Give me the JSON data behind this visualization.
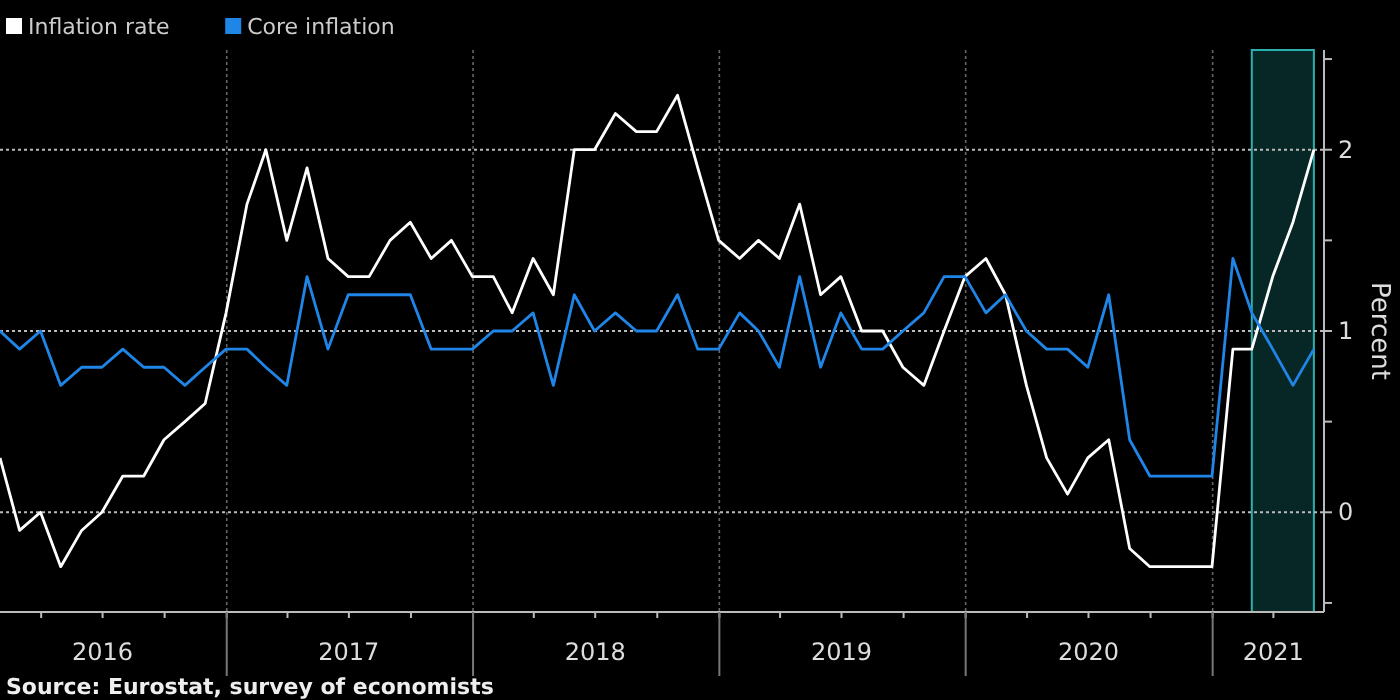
{
  "chart_data": {
    "type": "line",
    "ylabel": "Percent",
    "annotations": [
      "Source: Eurostat, survey of economists"
    ],
    "x": [
      "2016-01-31",
      "2016-02-29",
      "2016-03-31",
      "2016-04-30",
      "2016-05-31",
      "2016-06-30",
      "2016-07-31",
      "2016-08-31",
      "2016-09-30",
      "2016-10-31",
      "2016-11-30",
      "2016-12-31",
      "2017-01-31",
      "2017-02-28",
      "2017-03-31",
      "2017-04-30",
      "2017-05-31",
      "2017-06-30",
      "2017-07-31",
      "2017-08-31",
      "2017-09-30",
      "2017-10-31",
      "2017-11-30",
      "2017-12-31",
      "2018-01-31",
      "2018-02-28",
      "2018-03-31",
      "2018-04-30",
      "2018-05-31",
      "2018-06-30",
      "2018-07-31",
      "2018-08-31",
      "2018-09-30",
      "2018-10-31",
      "2018-11-30",
      "2018-12-31",
      "2019-01-31",
      "2019-02-28",
      "2019-03-31",
      "2019-04-30",
      "2019-05-31",
      "2019-06-30",
      "2019-07-31",
      "2019-08-31",
      "2019-09-30",
      "2019-10-31",
      "2019-11-30",
      "2019-12-31",
      "2020-01-31",
      "2020-02-29",
      "2020-03-31",
      "2020-04-30",
      "2020-05-31",
      "2020-06-30",
      "2020-07-31",
      "2020-08-31",
      "2020-09-30",
      "2020-10-31",
      "2020-11-30",
      "2020-12-31",
      "2021-01-31",
      "2021-02-28",
      "2021-03-31",
      "2021-04-30",
      "2021-05-31"
    ],
    "series": [
      {
        "name": "Inflation rate",
        "color": "#ffffff",
        "values": [
          0.3,
          -0.1,
          0.0,
          -0.3,
          -0.1,
          0.0,
          0.2,
          0.2,
          0.4,
          0.5,
          0.6,
          1.1,
          1.7,
          2.0,
          1.5,
          1.9,
          1.4,
          1.3,
          1.3,
          1.5,
          1.6,
          1.4,
          1.5,
          1.3,
          1.3,
          1.1,
          1.4,
          1.2,
          2.0,
          2.0,
          2.2,
          2.1,
          2.1,
          2.3,
          1.9,
          1.5,
          1.4,
          1.5,
          1.4,
          1.7,
          1.2,
          1.3,
          1.0,
          1.0,
          0.8,
          0.7,
          1.0,
          1.3,
          1.4,
          1.2,
          0.7,
          0.3,
          0.1,
          0.3,
          0.4,
          -0.2,
          -0.3,
          -0.3,
          -0.3,
          -0.3,
          0.9,
          0.9,
          1.3,
          1.6,
          2.0
        ]
      },
      {
        "name": "Core inflation",
        "color": "#1f86e8",
        "values": [
          1.0,
          0.9,
          1.0,
          0.7,
          0.8,
          0.8,
          0.9,
          0.8,
          0.8,
          0.7,
          0.8,
          0.9,
          0.9,
          0.8,
          0.7,
          1.3,
          0.9,
          1.2,
          1.2,
          1.2,
          1.2,
          0.9,
          0.9,
          0.9,
          1.0,
          1.0,
          1.1,
          0.7,
          1.2,
          1.0,
          1.1,
          1.0,
          1.0,
          1.2,
          0.9,
          0.9,
          1.1,
          1.0,
          0.8,
          1.3,
          0.8,
          1.1,
          0.9,
          0.9,
          1.0,
          1.1,
          1.3,
          1.3,
          1.1,
          1.2,
          1.0,
          0.9,
          0.9,
          0.8,
          1.2,
          0.4,
          0.2,
          0.2,
          0.2,
          0.2,
          1.4,
          1.1,
          0.9,
          0.7,
          0.9
        ]
      }
    ],
    "xlim": [
      "2016-01-31",
      "2021-06-15"
    ],
    "xticks": [
      {
        "value": "2016-07-01",
        "label": "2016"
      },
      {
        "value": "2017-07-01",
        "label": "2017"
      },
      {
        "value": "2018-07-01",
        "label": "2018"
      },
      {
        "value": "2019-07-01",
        "label": "2019"
      },
      {
        "value": "2020-07-01",
        "label": "2020"
      },
      {
        "value": "2021-04-01",
        "label": "2021"
      }
    ],
    "ylim": [
      -0.55,
      2.55
    ],
    "yticks": [
      {
        "value": -0.5,
        "label": null
      },
      0,
      {
        "value": 0.5,
        "label": null
      },
      1,
      {
        "value": 1.5,
        "label": null
      },
      2,
      {
        "value": 2.5,
        "label": null
      }
    ],
    "bands": [
      {
        "axis": "x",
        "from": "2021-02-28",
        "to": "2021-05-31",
        "color": "#072626"
      }
    ],
    "grid": true,
    "legend": "top left",
    "line_style": "solid",
    "marker": "none"
  }
}
